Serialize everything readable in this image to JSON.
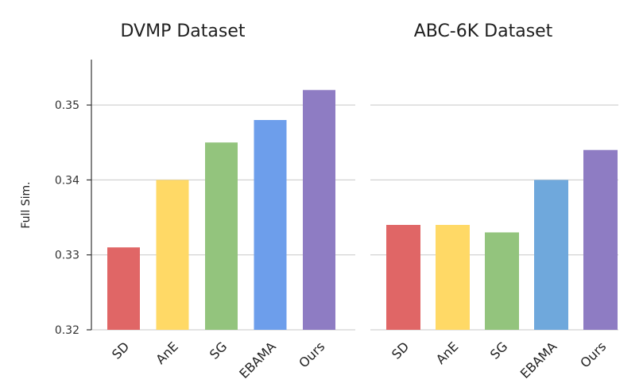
{
  "chart_data": [
    {
      "type": "bar",
      "title": "DVMP Dataset",
      "ylabel": "Full Sim.",
      "xlabel": "",
      "categories": [
        "SD",
        "AnE",
        "SG",
        "EBAMA",
        "Ours"
      ],
      "values": [
        0.331,
        0.34,
        0.345,
        0.348,
        0.352
      ],
      "colors": [
        "#e06666",
        "#ffd966",
        "#93c47d",
        "#6d9eeb",
        "#8e7cc3"
      ],
      "ylim": [
        0.32,
        0.355
      ],
      "yticks": [
        "0.32",
        "0.33",
        "0.34",
        "0.35"
      ],
      "grid": true
    },
    {
      "type": "bar",
      "title": "ABC-6K Dataset",
      "ylabel": "",
      "xlabel": "",
      "categories": [
        "SD",
        "AnE",
        "SG",
        "EBAMA",
        "Ours"
      ],
      "values": [
        0.334,
        0.334,
        0.333,
        0.34,
        0.344
      ],
      "colors": [
        "#e06666",
        "#ffd966",
        "#93c47d",
        "#6fa8dc",
        "#8e7cc3"
      ],
      "ylim": [
        0.32,
        0.355
      ],
      "yticks": [],
      "grid": true
    }
  ]
}
